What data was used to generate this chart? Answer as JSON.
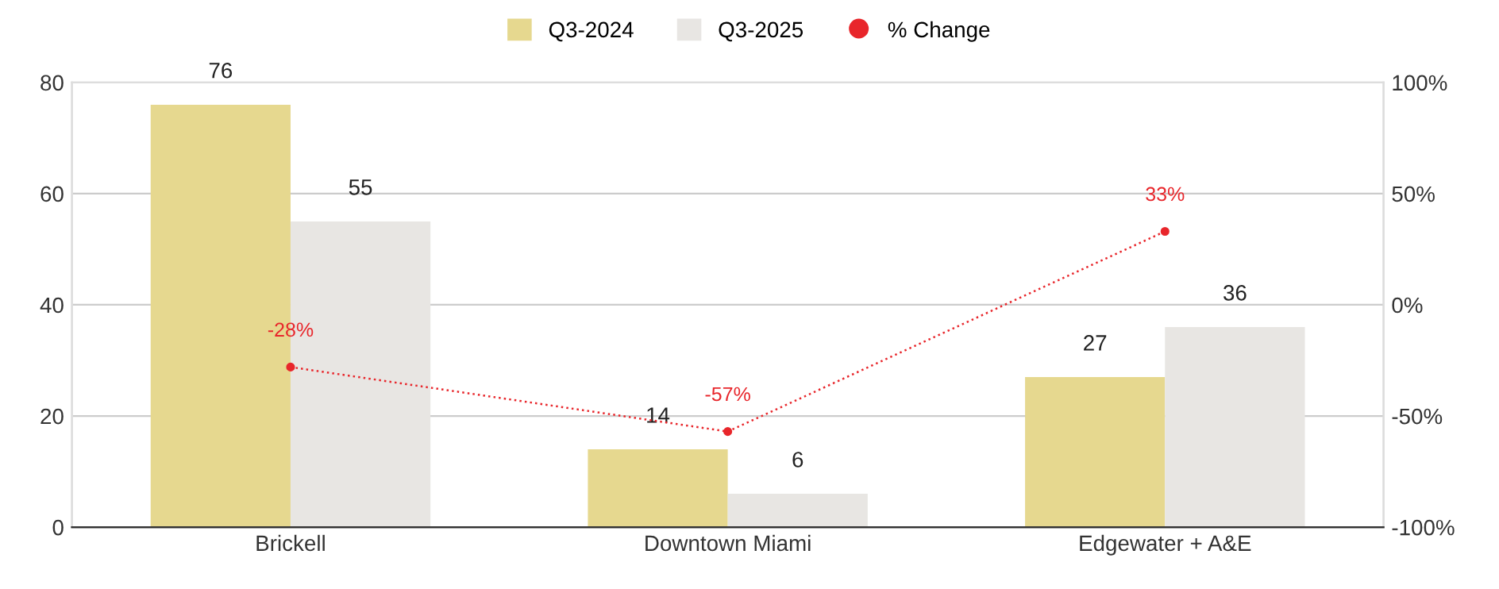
{
  "chart_data": {
    "type": "bar",
    "categories": [
      "Brickell",
      "Downtown Miami",
      "Edgewater + A&E"
    ],
    "series": [
      {
        "name": "Q3-2024",
        "color": "#e6d88f",
        "values": [
          76,
          14,
          27
        ],
        "value_labels": [
          "76",
          "14",
          "27"
        ]
      },
      {
        "name": "Q3-2025",
        "color": "#e8e6e3",
        "values": [
          55,
          6,
          36
        ],
        "value_labels": [
          "55",
          "6",
          "36"
        ]
      },
      {
        "name": "% Change",
        "type": "line",
        "axis": "y2",
        "color": "#e8262b",
        "values": [
          -28,
          -57,
          33
        ],
        "value_labels": [
          "-28%",
          "-57%",
          "33%"
        ],
        "marker": "circle",
        "line_style": "dotted"
      }
    ],
    "ylim": [
      0,
      80
    ],
    "yticks": [
      0,
      20,
      40,
      60,
      80
    ],
    "y2lim": [
      -100,
      100
    ],
    "y2ticks": [
      {
        "value": -100,
        "label": "-100%"
      },
      {
        "value": -50,
        "label": "-50%"
      },
      {
        "value": 0,
        "label": "0%"
      },
      {
        "value": 50,
        "label": "50%"
      },
      {
        "value": 100,
        "label": "100%"
      }
    ],
    "grid": "y",
    "legend": "top"
  }
}
